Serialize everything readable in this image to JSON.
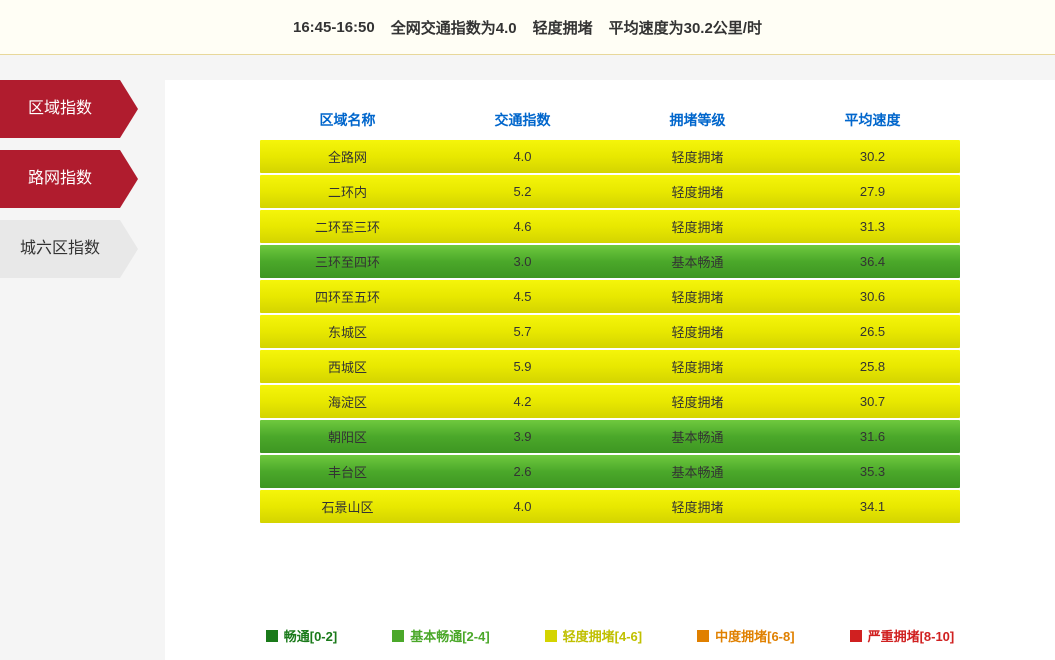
{
  "banner": {
    "time_range": "16:45-16:50",
    "index_text": "全网交通指数为4.0",
    "level_text": "轻度拥堵",
    "speed_text": "平均速度为30.2公里/时"
  },
  "tabs": [
    {
      "label": "区域指数",
      "active": true
    },
    {
      "label": "路网指数",
      "active": true
    },
    {
      "label": "城六区指数",
      "active": false
    }
  ],
  "table": {
    "headers": {
      "area": "区域名称",
      "index": "交通指数",
      "level": "拥堵等级",
      "speed": "平均速度"
    },
    "rows": [
      {
        "area": "全路网",
        "index": "4.0",
        "level": "轻度拥堵",
        "speed": "30.2",
        "color": "yellow"
      },
      {
        "area": "二环内",
        "index": "5.2",
        "level": "轻度拥堵",
        "speed": "27.9",
        "color": "yellow"
      },
      {
        "area": "二环至三环",
        "index": "4.6",
        "level": "轻度拥堵",
        "speed": "31.3",
        "color": "yellow"
      },
      {
        "area": "三环至四环",
        "index": "3.0",
        "level": "基本畅通",
        "speed": "36.4",
        "color": "green"
      },
      {
        "area": "四环至五环",
        "index": "4.5",
        "level": "轻度拥堵",
        "speed": "30.6",
        "color": "yellow"
      },
      {
        "area": "东城区",
        "index": "5.7",
        "level": "轻度拥堵",
        "speed": "26.5",
        "color": "yellow"
      },
      {
        "area": "西城区",
        "index": "5.9",
        "level": "轻度拥堵",
        "speed": "25.8",
        "color": "yellow"
      },
      {
        "area": "海淀区",
        "index": "4.2",
        "level": "轻度拥堵",
        "speed": "30.7",
        "color": "yellow"
      },
      {
        "area": "朝阳区",
        "index": "3.9",
        "level": "基本畅通",
        "speed": "31.6",
        "color": "green"
      },
      {
        "area": "丰台区",
        "index": "2.6",
        "level": "基本畅通",
        "speed": "35.3",
        "color": "green"
      },
      {
        "area": "石景山区",
        "index": "4.0",
        "level": "轻度拥堵",
        "speed": "34.1",
        "color": "yellow"
      }
    ]
  },
  "legend": [
    {
      "label": "畅通[0-2]",
      "color": "#1a7a1a",
      "text_class": "lg-green-dark"
    },
    {
      "label": "基本畅通[2-4]",
      "color": "#4ba82a",
      "text_class": "lg-green"
    },
    {
      "label": "轻度拥堵[4-6]",
      "color": "#d4d400",
      "text_class": "lg-yellow"
    },
    {
      "label": "中度拥堵[6-8]",
      "color": "#e08000",
      "text_class": "lg-orange"
    },
    {
      "label": "严重拥堵[8-10]",
      "color": "#d02020",
      "text_class": "lg-red"
    }
  ],
  "colors": {
    "active_tab_bg": "#b01c2e",
    "inactive_tab_bg": "#e8e8e8",
    "header_text": "#0066cc",
    "banner_bg": "#fffef5",
    "row_yellow_top": "#f5f50a",
    "row_yellow_bot": "#d4d400",
    "row_green_top": "#6fc93e",
    "row_green_bot": "#3e9622"
  }
}
